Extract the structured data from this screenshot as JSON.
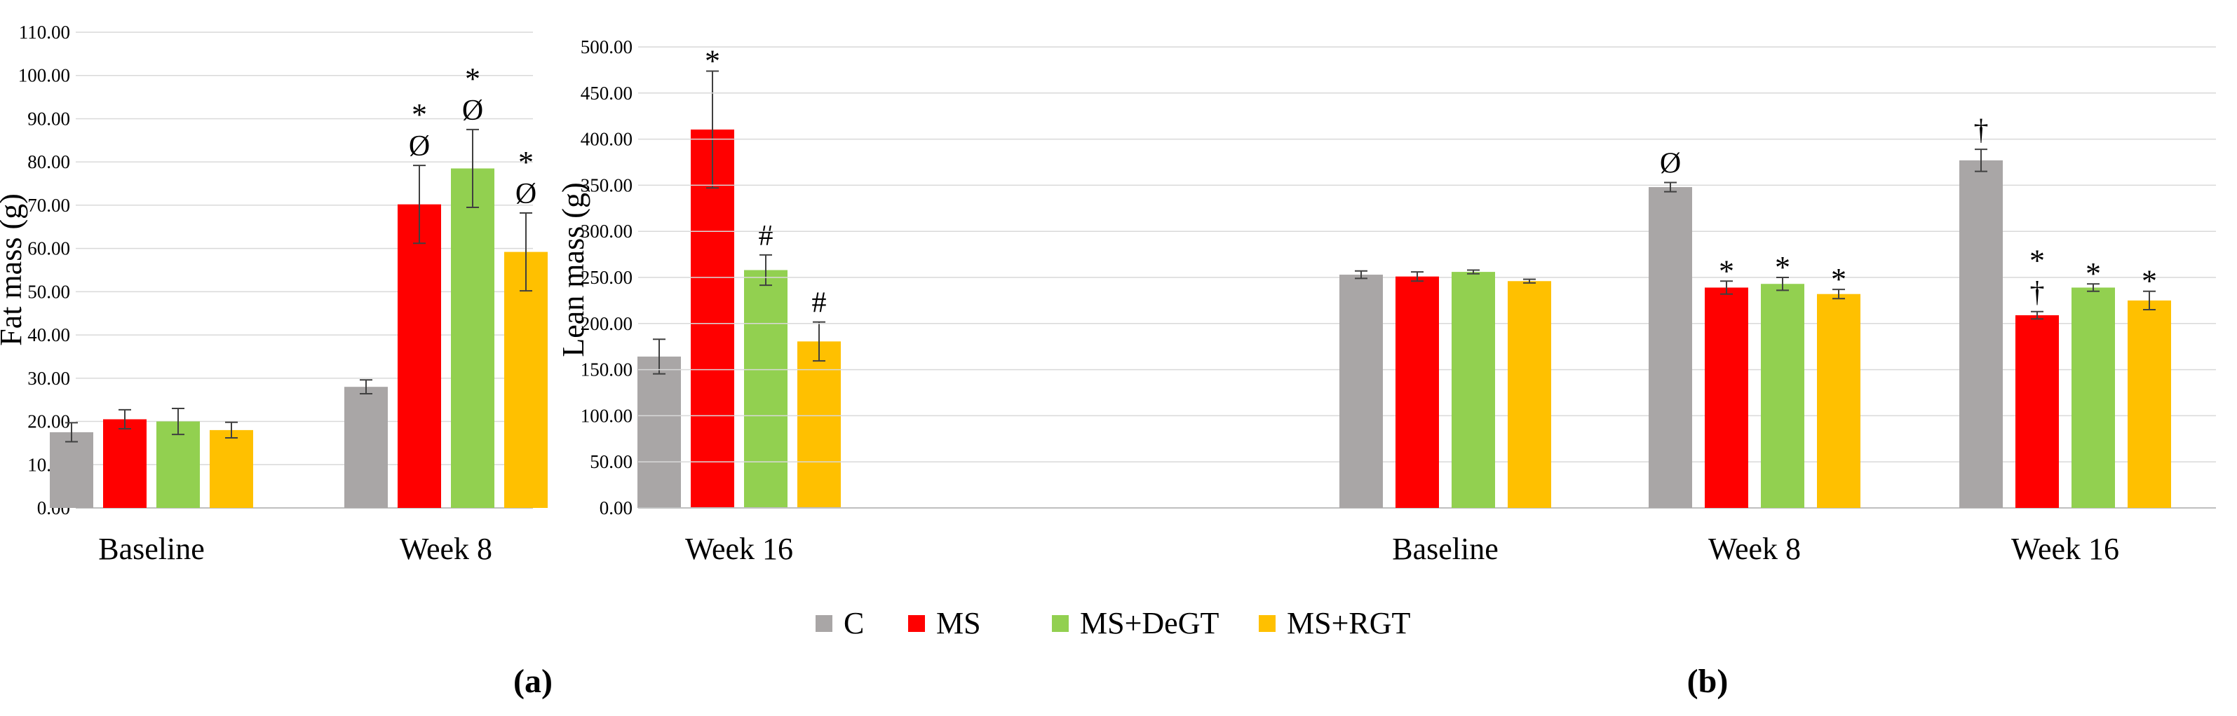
{
  "chart_data": [
    {
      "type": "bar",
      "panel_label": "(a)",
      "ylabel": "Fat mass (g)",
      "ylim": [
        0,
        110
      ],
      "ytick_step": 10,
      "ytick_labels": [
        "0.00",
        "10.00",
        "20.00",
        "30.00",
        "40.00",
        "50.00",
        "60.00",
        "70.00",
        "80.00",
        "90.00",
        "100.00",
        "110.00"
      ],
      "categories": [
        "Baseline",
        "Week 8",
        "Week 16"
      ],
      "series": [
        {
          "name": "C",
          "values": [
            17.5,
            28,
            35
          ],
          "errors": [
            2.2,
            1.6,
            4
          ],
          "annotations": [
            "",
            "",
            ""
          ]
        },
        {
          "name": "MS",
          "values": [
            20.5,
            70.2,
            87.5
          ],
          "errors": [
            2.2,
            9,
            13.5
          ],
          "annotations": [
            "",
            "*\nØ",
            "*"
          ]
        },
        {
          "name": "MS+DeGT",
          "values": [
            20,
            78.5,
            55
          ],
          "errors": [
            3,
            9,
            3.5
          ],
          "annotations": [
            "",
            "*\nØ",
            "#"
          ]
        },
        {
          "name": "MS+RGT",
          "values": [
            18,
            59.2,
            38.5
          ],
          "errors": [
            1.8,
            9,
            4.5
          ],
          "annotations": [
            "",
            "*\nØ",
            "#"
          ]
        }
      ]
    },
    {
      "type": "bar",
      "panel_label": "(b)",
      "ylabel": "Lean mass (g)",
      "ylim": [
        0,
        500
      ],
      "ytick_step": 50,
      "ytick_labels": [
        "0.00",
        "50.00",
        "100.00",
        "150.00",
        "200.00",
        "250.00",
        "300.00",
        "350.00",
        "400.00",
        "450.00",
        "500.00"
      ],
      "categories": [
        "Baseline",
        "Week 8",
        "Week 16"
      ],
      "series": [
        {
          "name": "C",
          "values": [
            253,
            348,
            377
          ],
          "errors": [
            4,
            5,
            12
          ],
          "annotations": [
            "",
            "Ø",
            "†"
          ]
        },
        {
          "name": "MS",
          "values": [
            251,
            239,
            209
          ],
          "errors": [
            5,
            7,
            4
          ],
          "annotations": [
            "",
            "*",
            "*\n†"
          ]
        },
        {
          "name": "MS+DeGT",
          "values": [
            256,
            243,
            239
          ],
          "errors": [
            2,
            7,
            4
          ],
          "annotations": [
            "",
            "*",
            "*"
          ]
        },
        {
          "name": "MS+RGT",
          "values": [
            246,
            232,
            225
          ],
          "errors": [
            2,
            5,
            10
          ],
          "annotations": [
            "",
            "*",
            "*"
          ]
        }
      ]
    }
  ],
  "legend": {
    "position": "bottom-center",
    "items": [
      {
        "label": "C",
        "color": "#a9a6a6"
      },
      {
        "label": "MS",
        "color": "#ff0000"
      },
      {
        "label": "MS+DeGT",
        "color": "#92d050"
      },
      {
        "label": "MS+RGT",
        "color": "#ffc000"
      }
    ]
  }
}
